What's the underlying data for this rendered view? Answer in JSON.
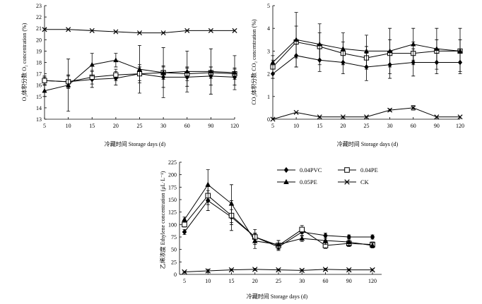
{
  "chart_data": [
    {
      "type": "line",
      "id": "o2",
      "categories": [
        "5",
        "10",
        "15",
        "20",
        "25",
        "30",
        "60",
        "90",
        "120"
      ],
      "xlabel": "冷藏时间 Storage days (d)",
      "ylabel": "O₂体积分数 O₂ concentration (%)",
      "ylim": [
        13,
        23
      ],
      "yticks": [
        13,
        14,
        15,
        16,
        17,
        18,
        19,
        20,
        21,
        22,
        23
      ],
      "grid": false,
      "series": [
        {
          "key": "pvc",
          "marker": "diamond",
          "values": [
            16.4,
            16.3,
            16.5,
            16.6,
            17.0,
            16.7,
            16.7,
            16.8,
            16.7
          ],
          "errors": [
            0.4,
            0.6,
            0.7,
            0.6,
            0.8,
            0.9,
            0.8,
            0.8,
            0.7
          ]
        },
        {
          "key": "pe04",
          "marker": "square",
          "values": [
            16.4,
            16.3,
            16.7,
            16.9,
            17.0,
            17.1,
            17.0,
            17.1,
            17.0
          ],
          "errors": [
            0.3,
            0.5,
            0.6,
            0.5,
            0.6,
            0.6,
            0.6,
            0.5,
            0.5
          ]
        },
        {
          "key": "pe05",
          "marker": "triangle",
          "values": [
            15.5,
            16.0,
            17.8,
            18.2,
            17.4,
            17.1,
            17.2,
            17.2,
            17.1
          ],
          "errors": [
            0.5,
            2.3,
            1.0,
            0.6,
            2.1,
            2.2,
            1.8,
            2.0,
            1.5
          ]
        },
        {
          "key": "ck",
          "marker": "x",
          "values": [
            20.9,
            20.9,
            20.8,
            20.7,
            20.6,
            20.6,
            20.8,
            20.8,
            20.8
          ],
          "errors": [
            0,
            0,
            0,
            0,
            0,
            0,
            0,
            0,
            0
          ]
        }
      ]
    },
    {
      "type": "line",
      "id": "co2",
      "categories": [
        "5",
        "10",
        "15",
        "20",
        "25",
        "30",
        "60",
        "90",
        "120"
      ],
      "xlabel": "冷藏时间 Storage days (d)",
      "ylabel": "CO₂体积分数 CO₂ concentration (%)",
      "ylim": [
        0,
        5
      ],
      "yticks": [
        0,
        1,
        2,
        3,
        4,
        5
      ],
      "grid": false,
      "series": [
        {
          "key": "pvc",
          "marker": "diamond",
          "values": [
            2.0,
            2.8,
            2.6,
            2.5,
            2.3,
            2.4,
            2.5,
            2.5,
            2.5
          ],
          "errors": [
            0.2,
            0.5,
            0.5,
            0.5,
            0.6,
            0.6,
            0.6,
            0.5,
            0.4
          ]
        },
        {
          "key": "pe04",
          "marker": "square",
          "values": [
            2.3,
            3.4,
            3.2,
            2.9,
            2.7,
            2.9,
            2.9,
            3.0,
            3.0
          ],
          "errors": [
            0.3,
            0.7,
            0.6,
            0.5,
            0.5,
            0.6,
            0.5,
            0.5,
            0.5
          ]
        },
        {
          "key": "pe05",
          "marker": "triangle",
          "values": [
            2.5,
            3.5,
            3.3,
            3.1,
            3.0,
            3.0,
            3.3,
            3.1,
            3.0
          ],
          "errors": [
            0.3,
            1.2,
            0.9,
            0.7,
            0.7,
            1.0,
            0.7,
            0.9,
            1.0
          ]
        },
        {
          "key": "ck",
          "marker": "x",
          "values": [
            0.0,
            0.3,
            0.1,
            0.1,
            0.1,
            0.4,
            0.5,
            0.1,
            0.1
          ],
          "errors": [
            0,
            0,
            0,
            0,
            0,
            0.05,
            0.1,
            0,
            0
          ]
        }
      ]
    },
    {
      "type": "line",
      "id": "ethylene",
      "categories": [
        "5",
        "10",
        "15",
        "20",
        "25",
        "30",
        "60",
        "90",
        "120"
      ],
      "xlabel": "冷藏时间 Storage days (d)",
      "ylabel": "乙烯浓度 Ethylene concentration (μL·L⁻¹)",
      "ylim": [
        0,
        225
      ],
      "yticks": [
        0,
        25,
        50,
        75,
        100,
        125,
        150,
        175,
        200,
        225
      ],
      "grid": false,
      "legend_position": "top-right",
      "series": [
        {
          "key": "pvc",
          "name": "0.04PVC",
          "marker": "diamond",
          "values": [
            85,
            148,
            115,
            75,
            55,
            85,
            78,
            75,
            75
          ],
          "errors": [
            5,
            20,
            15,
            8,
            5,
            8,
            5,
            4,
            4
          ]
        },
        {
          "key": "pe04",
          "name": "0.04PE",
          "marker": "square",
          "values": [
            100,
            158,
            118,
            75,
            58,
            90,
            58,
            62,
            60
          ],
          "errors": [
            5,
            18,
            30,
            15,
            10,
            8,
            6,
            6,
            5
          ]
        },
        {
          "key": "pe05",
          "name": "0.05PE",
          "marker": "triangle",
          "values": [
            110,
            180,
            142,
            67,
            60,
            72,
            68,
            65,
            58
          ],
          "errors": [
            5,
            30,
            38,
            15,
            8,
            6,
            8,
            6,
            5
          ]
        },
        {
          "key": "ck",
          "name": "CK",
          "marker": "x",
          "values": [
            5,
            7,
            9,
            10,
            9,
            8,
            10,
            9,
            9
          ],
          "errors": [
            1,
            3,
            2,
            2,
            2,
            2,
            2,
            2,
            2
          ]
        }
      ]
    }
  ]
}
